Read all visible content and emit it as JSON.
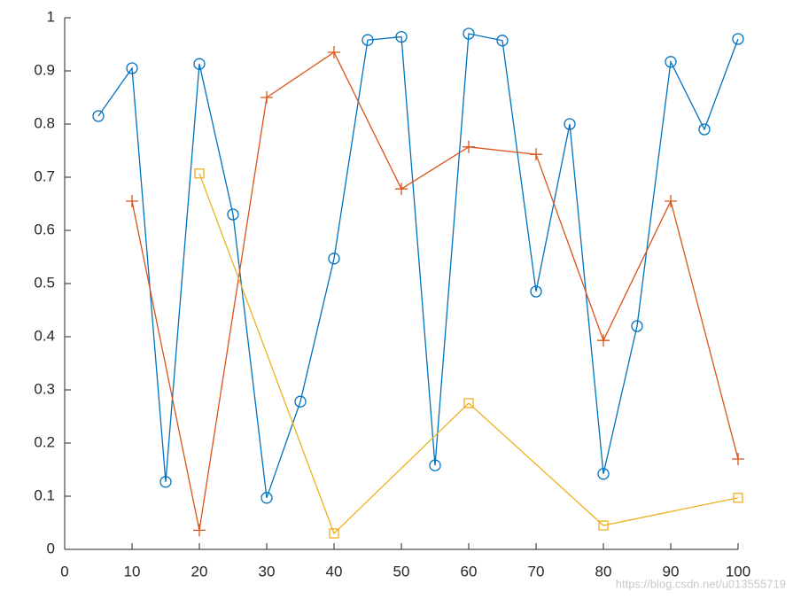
{
  "chart_data": {
    "type": "line",
    "series": [
      {
        "color": "#0072BD",
        "marker": "circle",
        "x": [
          5,
          10,
          15,
          20,
          25,
          30,
          35,
          40,
          45,
          50,
          55,
          60,
          65,
          70,
          75,
          80,
          85,
          90,
          95,
          100
        ],
        "values": [
          0.815,
          0.905,
          0.127,
          0.913,
          0.63,
          0.097,
          0.278,
          0.547,
          0.958,
          0.964,
          0.158,
          0.97,
          0.957,
          0.485,
          0.8,
          0.142,
          0.42,
          0.917,
          0.79,
          0.96
        ]
      },
      {
        "color": "#D95319",
        "marker": "plus",
        "x": [
          10,
          20,
          30,
          40,
          50,
          60,
          70,
          80,
          90,
          100
        ],
        "values": [
          0.655,
          0.036,
          0.85,
          0.935,
          0.678,
          0.757,
          0.743,
          0.393,
          0.655,
          0.17
        ]
      },
      {
        "color": "#EDB120",
        "marker": "square",
        "x": [
          20,
          40,
          60,
          80,
          100
        ],
        "values": [
          0.707,
          0.03,
          0.275,
          0.045,
          0.097
        ]
      }
    ],
    "xlim": [
      0,
      100
    ],
    "xticks": [
      0,
      10,
      20,
      30,
      40,
      50,
      60,
      70,
      80,
      90,
      100
    ],
    "ylim": [
      0,
      1
    ],
    "yticks": [
      0,
      0.1,
      0.2,
      0.3,
      0.4,
      0.5,
      0.6,
      0.7,
      0.8,
      0.9,
      1
    ],
    "grid": false,
    "watermark": "https://blog.csdn.net/u013555719"
  }
}
